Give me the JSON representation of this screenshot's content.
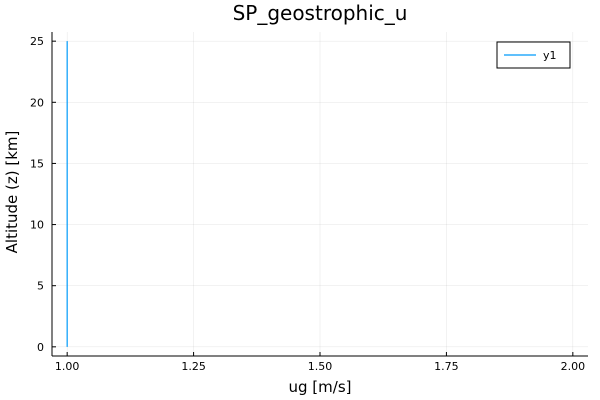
{
  "chart_data": {
    "type": "line",
    "title": "SP_geostrophic_u",
    "xlabel": "ug [m/s]",
    "ylabel": "Altitude (z) [km]",
    "xlim": [
      0.97,
      2.03
    ],
    "ylim": [
      -0.75,
      25.75
    ],
    "xticks": [
      1.0,
      1.25,
      1.5,
      1.75,
      2.0
    ],
    "xtick_labels": [
      "1.00",
      "1.25",
      "1.50",
      "1.75",
      "2.00"
    ],
    "yticks": [
      0,
      5,
      10,
      15,
      20,
      25
    ],
    "ytick_labels": [
      "0",
      "5",
      "10",
      "15",
      "20",
      "25"
    ],
    "grid": true,
    "legend_position": "top-right",
    "series": [
      {
        "name": "y1",
        "color": "#009AFA",
        "x": [
          1.0,
          1.0
        ],
        "y": [
          0,
          25
        ]
      }
    ]
  }
}
